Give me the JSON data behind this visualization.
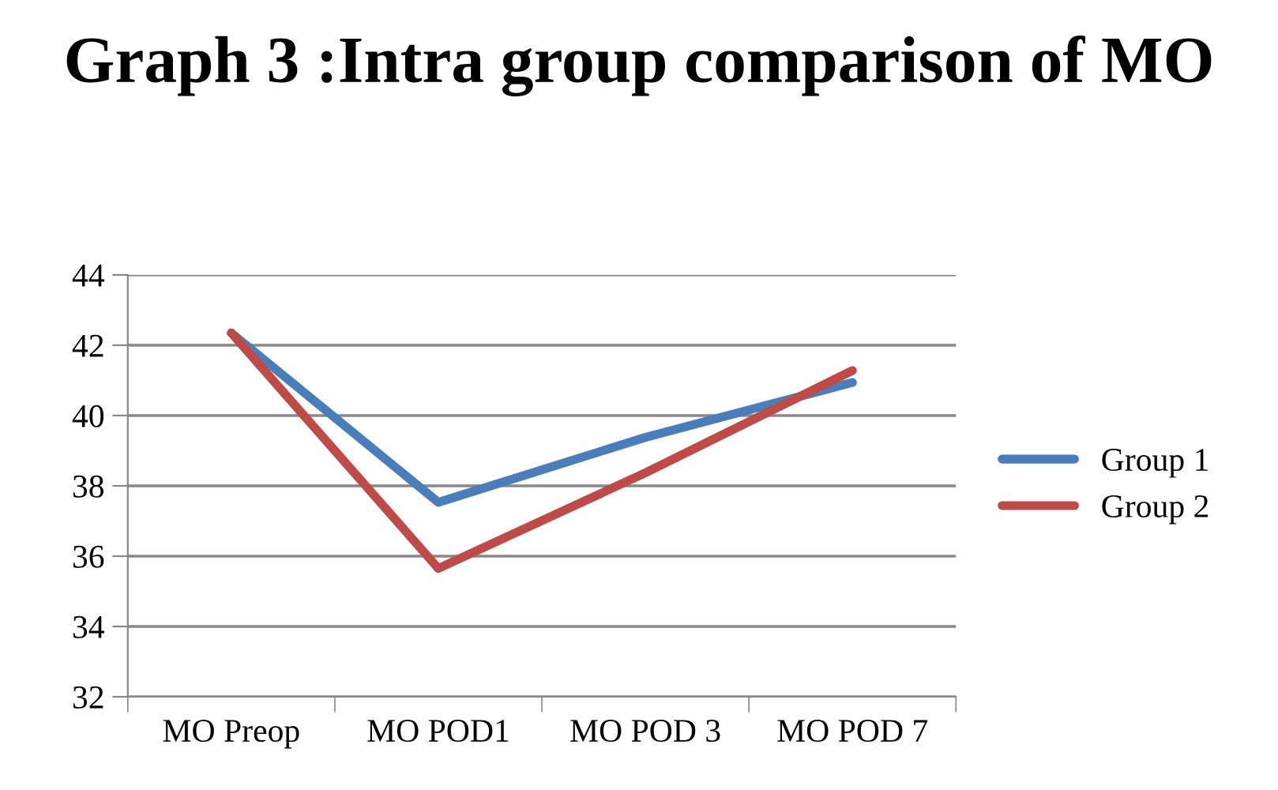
{
  "chart_data": {
    "type": "line",
    "title": "Graph 3 :Intra group comparison of MO",
    "categories": [
      "MO Preop",
      "MO POD1",
      "MO POD 3",
      "MO POD 7"
    ],
    "series": [
      {
        "name": "Group 1",
        "color": "#4a7ebb",
        "values": [
          42.35,
          37.53,
          39.38,
          40.94
        ]
      },
      {
        "name": "Group 2",
        "color": "#be4b48",
        "values": [
          42.35,
          35.65,
          38.37,
          41.28
        ]
      }
    ],
    "ylim": [
      32,
      44
    ],
    "yticks": [
      32,
      34,
      36,
      38,
      40,
      42,
      44
    ],
    "grid": "y",
    "legend": "right",
    "marker": "none",
    "line_style": "solid"
  }
}
